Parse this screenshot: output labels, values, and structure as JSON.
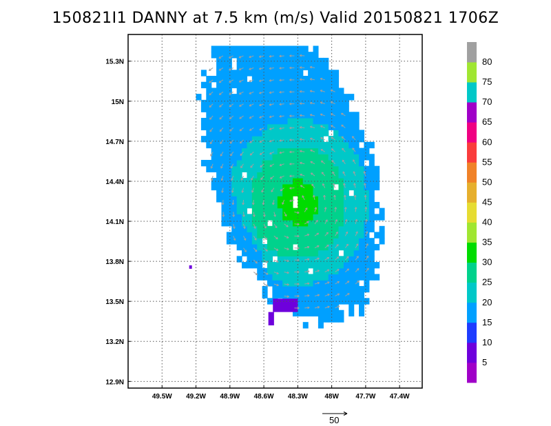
{
  "title": "150821I1 DANNY at 7.5 km (m/s) Valid 20150821  1706Z",
  "map": {
    "lon_range": [
      -49.8,
      -47.2
    ],
    "lat_range": [
      12.85,
      15.5
    ],
    "x_ticks": [
      {
        "value": -49.5,
        "label": "49.5W"
      },
      {
        "value": -49.2,
        "label": "49.2W"
      },
      {
        "value": -48.9,
        "label": "48.9W"
      },
      {
        "value": -48.6,
        "label": "48.6W"
      },
      {
        "value": -48.3,
        "label": "48.3W"
      },
      {
        "value": -48.0,
        "label": "48W"
      },
      {
        "value": -47.7,
        "label": "47.7W"
      },
      {
        "value": -47.4,
        "label": "47.4W"
      }
    ],
    "y_ticks": [
      {
        "value": 15.3,
        "label": "15.3N"
      },
      {
        "value": 15.0,
        "label": "15N"
      },
      {
        "value": 14.7,
        "label": "14.7N"
      },
      {
        "value": 14.4,
        "label": "14.4N"
      },
      {
        "value": 14.1,
        "label": "14.1N"
      },
      {
        "value": 13.8,
        "label": "13.8N"
      },
      {
        "value": 13.5,
        "label": "13.5N"
      },
      {
        "value": 13.2,
        "label": "13.2N"
      },
      {
        "value": 12.9,
        "label": "12.9N"
      }
    ],
    "storm_center": [
      -48.32,
      14.22
    ],
    "grid": "dotted",
    "vector_color": "#a0a0a0"
  },
  "colorbar": {
    "levels": [
      {
        "label": "",
        "color": "#a000c8"
      },
      {
        "label": "5",
        "color": "#6e00dc"
      },
      {
        "label": "10",
        "color": "#1e3cff"
      },
      {
        "label": "15",
        "color": "#00a0ff"
      },
      {
        "label": "20",
        "color": "#00c8c8"
      },
      {
        "label": "25",
        "color": "#00d28c"
      },
      {
        "label": "30",
        "color": "#00dc00"
      },
      {
        "label": "35",
        "color": "#a0e632"
      },
      {
        "label": "40",
        "color": "#e6dc32"
      },
      {
        "label": "45",
        "color": "#e6af2d"
      },
      {
        "label": "50",
        "color": "#f08228"
      },
      {
        "label": "55",
        "color": "#fa3c3c"
      },
      {
        "label": "60",
        "color": "#f00082"
      },
      {
        "label": "65",
        "color": "#a000c8"
      },
      {
        "label": "70",
        "color": "#00c8c8"
      },
      {
        "label": "75",
        "color": "#a0e632"
      },
      {
        "label": "80",
        "color": "#a0a0a0"
      }
    ]
  },
  "reference_vector": {
    "label": "50"
  }
}
